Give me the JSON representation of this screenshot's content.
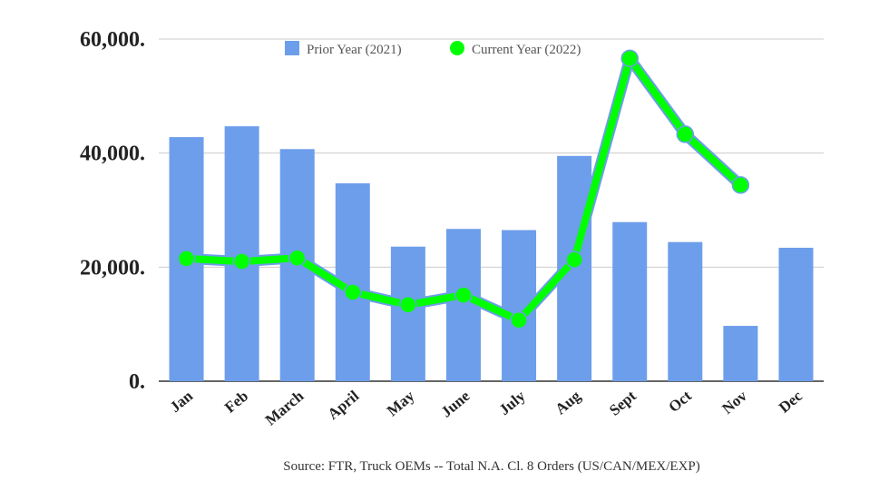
{
  "chart_data": {
    "type": "bar",
    "title": "",
    "xlabel": "",
    "ylabel": "",
    "ylim": [
      0,
      60000
    ],
    "yticks": [
      "0.",
      "20,000.",
      "40,000.",
      "60,000."
    ],
    "categories": [
      "Jan",
      "Feb",
      "March",
      "April",
      "May",
      "June",
      "July",
      "Aug",
      "Sept",
      "Oct",
      "Nov",
      "Dec"
    ],
    "series": [
      {
        "name": "Prior Year (2021)",
        "kind": "bar",
        "color": "#6d9eeb",
        "values": [
          42800,
          44700,
          40700,
          34700,
          23600,
          26700,
          26500,
          39500,
          27900,
          24400,
          9700,
          23400
        ]
      },
      {
        "name": "Current Year (2022)",
        "kind": "line",
        "color": "#00ff00",
        "outline": "#6d9eeb",
        "values": [
          21500,
          21000,
          21600,
          15600,
          13400,
          15100,
          10700,
          21300,
          56600,
          43300,
          34400,
          null
        ]
      }
    ],
    "grid": true,
    "legend": "top-center",
    "source": "Source: FTR, Truck OEMs -- Total N.A. Cl. 8 Orders (US/CAN/MEX/EXP)"
  }
}
